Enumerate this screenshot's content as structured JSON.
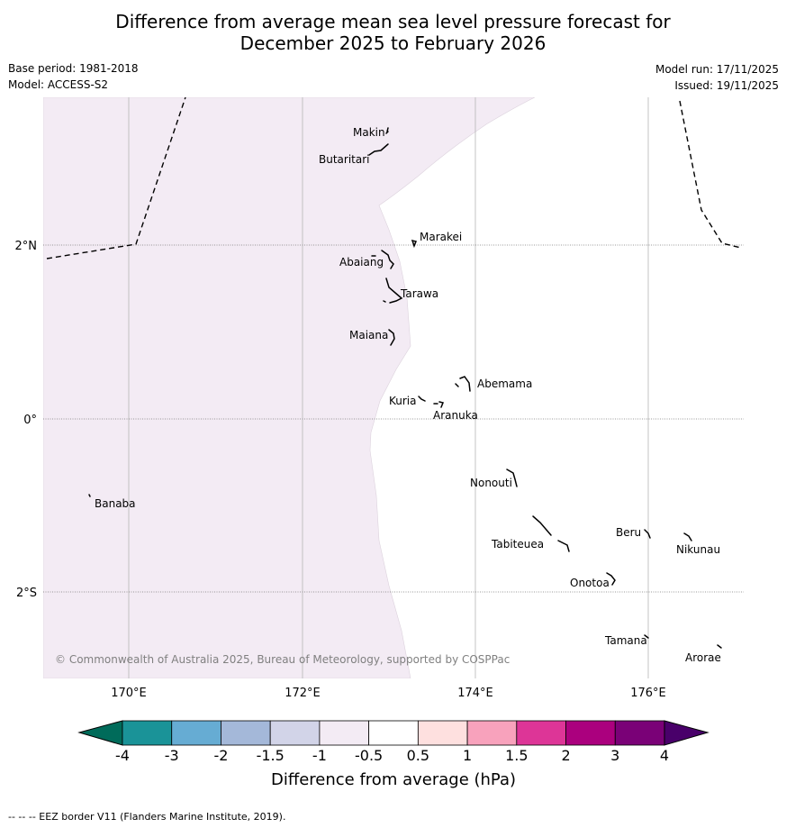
{
  "header": {
    "title_line1": "Difference from average mean sea level pressure forecast for",
    "title_line2": "December 2025 to February 2026",
    "base_period": "Base period: 1981-2018",
    "model": "Model: ACCESS-S2",
    "model_run": "Model run: 17/11/2025",
    "issued": "Issued: 19/11/2025"
  },
  "map": {
    "lon_ticks": [
      "170°E",
      "172°E",
      "174°E",
      "176°E"
    ],
    "lat_ticks": [
      "2°N",
      "0°",
      "2°S"
    ],
    "places": [
      "Makin",
      "Butaritari",
      "Marakei",
      "Abaiang",
      "Tarawa",
      "Maiana",
      "Abemama",
      "Kuria",
      "Aranuka",
      "Nonouti",
      "Banaba",
      "Beru",
      "Nikunau",
      "Tabiteuea",
      "Onotoa",
      "Tamana",
      "Arorae"
    ],
    "copyright": "© Commonwealth of Australia 2025, Bureau of Meteorology, supported by COSPPac",
    "shaded_category": "-1 to -0.5",
    "shaded_color": "#f3ebf4"
  },
  "colorbar": {
    "labels": [
      "-4",
      "-3",
      "-2",
      "-1.5",
      "-1",
      "-0.5",
      "0.5",
      "1",
      "1.5",
      "2",
      "3",
      "4"
    ],
    "colors": [
      "#1a9398",
      "#66acd3",
      "#a4b8d9",
      "#d2d4e8",
      "#f3ebf4",
      "#ffffff",
      "#fee0df",
      "#f8a2bc",
      "#dd3597",
      "#ab007e",
      "#7a0177"
    ],
    "under_color": "#006b5a",
    "over_color": "#49006a",
    "label": "Difference from average (hPa)"
  },
  "footer": {
    "text": "--  --  -- EEZ border V11 (Flanders Marine Institute, 2019)."
  }
}
